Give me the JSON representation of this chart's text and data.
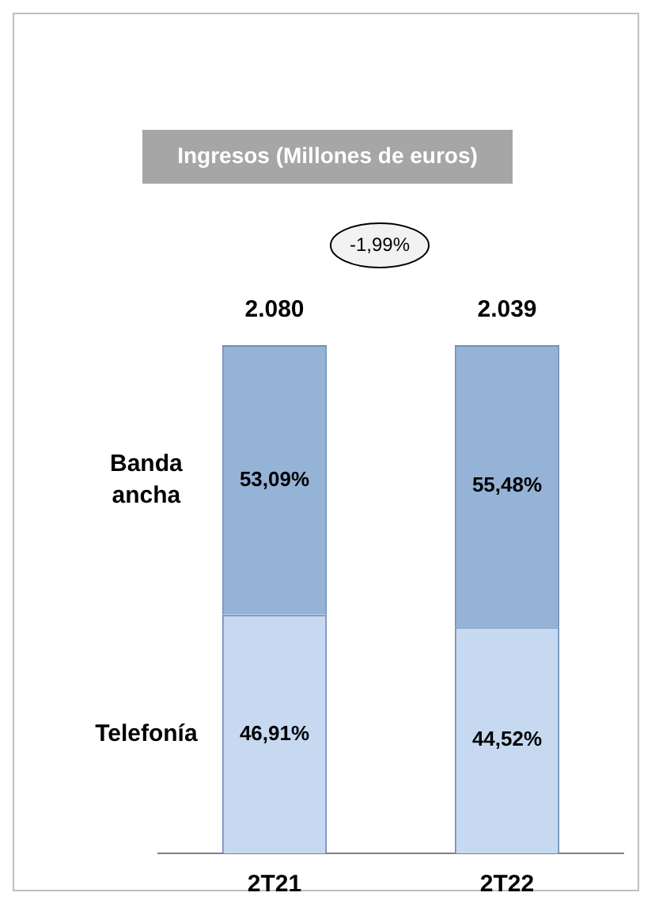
{
  "chart_data": {
    "type": "bar",
    "title": "Ingresos (Millones de euros)",
    "categories": [
      "2T21",
      "2T22"
    ],
    "stacked": true,
    "ylim": [
      0,
      100
    ],
    "tick_labels": "x",
    "grid": false,
    "legend": false,
    "series": [
      {
        "name": "Telefonía",
        "color": "#c6d9f1",
        "values": [
          46.91,
          44.52
        ],
        "value_labels": [
          "46,91%",
          "44,52%"
        ]
      },
      {
        "name": "Banda ancha",
        "color": "#95b3d7",
        "values": [
          53.09,
          55.48
        ],
        "value_labels": [
          "53,09%",
          "55,48%"
        ]
      }
    ],
    "annotations": [
      "-1,99%",
      {
        "text": "2.080",
        "x": "2T21",
        "y": 100
      },
      {
        "text": "2.039",
        "x": "2T22",
        "y": 100
      }
    ]
  }
}
